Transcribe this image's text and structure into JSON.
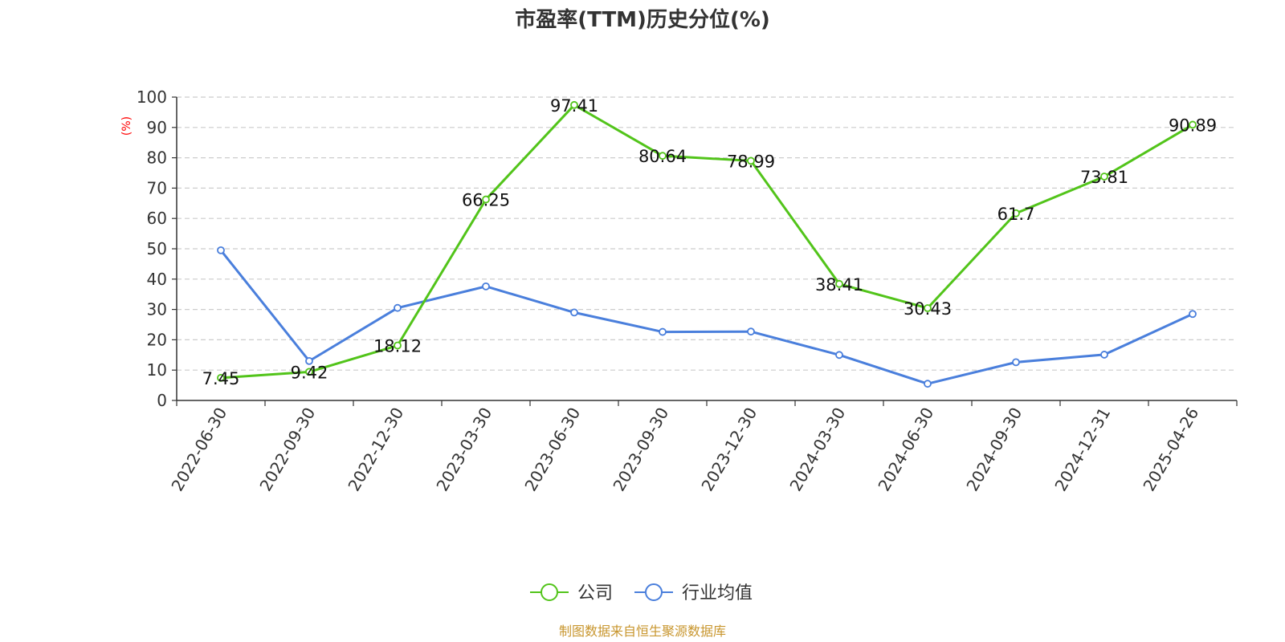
{
  "chart_data": {
    "type": "line",
    "title": "市盈率(TTM)历史分位(%)",
    "ylabel": "(%)",
    "ylim": [
      0,
      100
    ],
    "yticks": [
      0,
      10,
      20,
      30,
      40,
      50,
      60,
      70,
      80,
      90,
      100
    ],
    "grid": true,
    "legend_position": "bottom-center",
    "categories": [
      "2022-06-30",
      "2022-09-30",
      "2022-12-30",
      "2023-03-30",
      "2023-06-30",
      "2023-09-30",
      "2023-12-30",
      "2024-03-30",
      "2024-06-30",
      "2024-09-30",
      "2024-12-31",
      "2025-04-26"
    ],
    "series": [
      {
        "name": "公司",
        "color": "#52c41a",
        "show_labels": true,
        "values": [
          7.45,
          9.42,
          18.12,
          66.25,
          97.41,
          80.64,
          78.99,
          38.41,
          30.43,
          61.7,
          73.81,
          90.89
        ]
      },
      {
        "name": "行业均值",
        "color": "#4a7fdc",
        "show_labels": false,
        "values": [
          49.5,
          13.0,
          30.5,
          37.6,
          29.0,
          22.6,
          22.7,
          15.0,
          5.5,
          12.6,
          15.1,
          28.5
        ]
      }
    ]
  },
  "source": "制图数据来自恒生聚源数据库"
}
